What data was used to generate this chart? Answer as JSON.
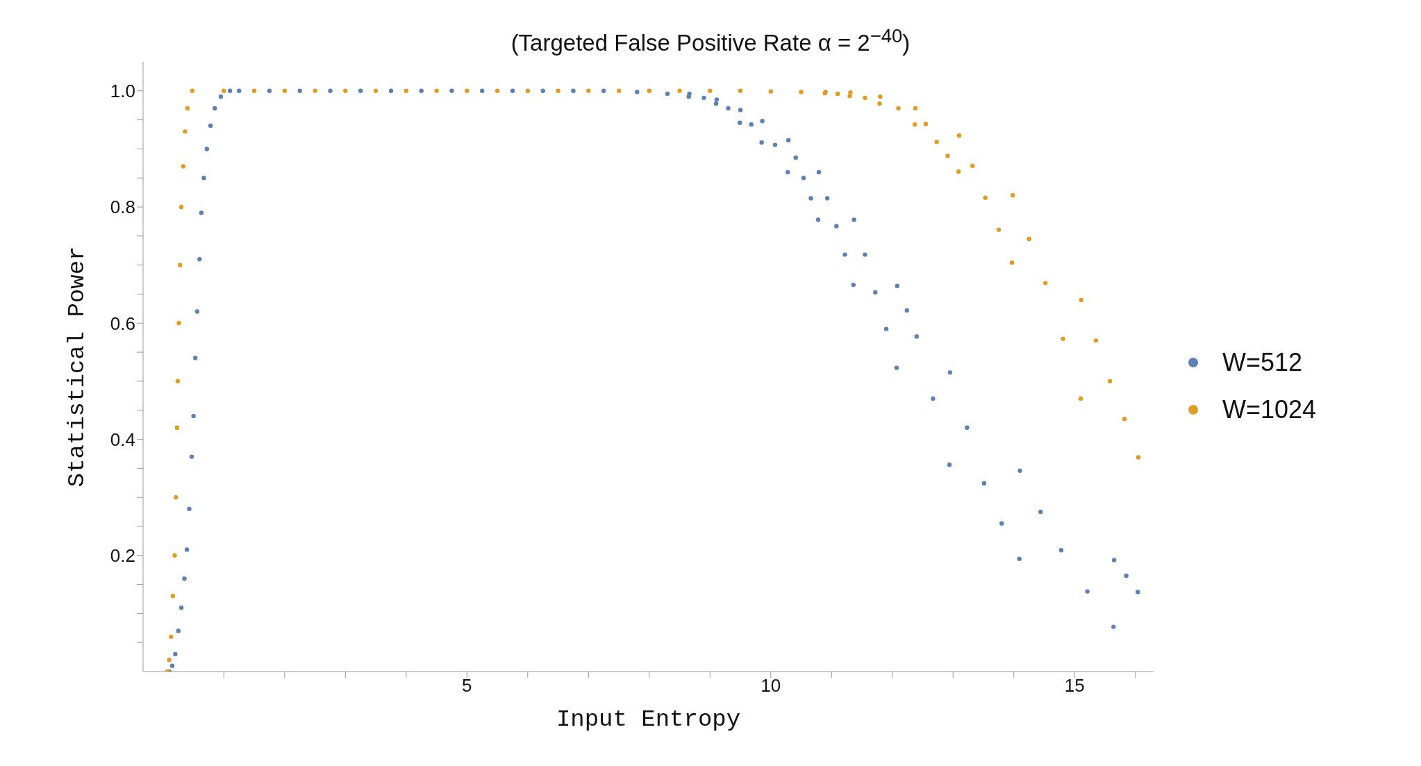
{
  "chart_data": {
    "type": "scatter",
    "title": "(Targeted False Positive Rate α = 2$^{−40}$)",
    "xlabel": "Input Entropy",
    "ylabel": "Statistical Power",
    "marker": "circle",
    "legend": "right",
    "xlim": [
      -0.33,
      16.3
    ],
    "ylim": [
      0,
      1.05
    ],
    "xticks": [
      {
        "value": 1,
        "label": null
      },
      {
        "value": 2,
        "label": null
      },
      {
        "value": 3,
        "label": null
      },
      {
        "value": 4,
        "label": null
      },
      5,
      {
        "value": 6,
        "label": null
      },
      {
        "value": 7,
        "label": null
      },
      {
        "value": 8,
        "label": null
      },
      {
        "value": 9,
        "label": null
      },
      10,
      {
        "value": 11,
        "label": null
      },
      {
        "value": 12,
        "label": null
      },
      {
        "value": 13,
        "label": null
      },
      {
        "value": 14,
        "label": null
      },
      15,
      {
        "value": 16,
        "label": null
      }
    ],
    "yticks": [
      {
        "value": 0.05,
        "label": null
      },
      {
        "value": 0.1,
        "label": null
      },
      {
        "value": 0.15,
        "label": null
      },
      {
        "value": 0.2,
        "label": "0.2"
      },
      {
        "value": 0.25,
        "label": null
      },
      {
        "value": 0.3,
        "label": null
      },
      {
        "value": 0.35,
        "label": null
      },
      {
        "value": 0.4,
        "label": "0.4"
      },
      {
        "value": 0.45,
        "label": null
      },
      {
        "value": 0.5,
        "label": null
      },
      {
        "value": 0.55,
        "label": null
      },
      {
        "value": 0.6,
        "label": "0.6"
      },
      {
        "value": 0.65,
        "label": null
      },
      {
        "value": 0.7,
        "label": null
      },
      {
        "value": 0.75,
        "label": null
      },
      {
        "value": 0.8,
        "label": "0.8"
      },
      {
        "value": 0.85,
        "label": null
      },
      {
        "value": 0.9,
        "label": null
      },
      {
        "value": 0.95,
        "label": null
      },
      {
        "value": 1,
        "label": "1.0"
      }
    ],
    "series": [
      {
        "name": "W=512",
        "color": "#5e81b5",
        "x": [
          0.1,
          0.15,
          0.2,
          0.25,
          0.3,
          0.35,
          0.39,
          0.43,
          0.47,
          0.5,
          0.53,
          0.56,
          0.6,
          0.63,
          0.67,
          0.72,
          0.78,
          0.85,
          0.95,
          1.1,
          1.25,
          1.75,
          2.25,
          2.75,
          3.25,
          3.75,
          4.25,
          4.75,
          5.25,
          5.75,
          6.25,
          6.75,
          7.25,
          7.8,
          8.3,
          8.65,
          8.66,
          8.9,
          9.1,
          9.11,
          9.3,
          9.49,
          9.5,
          9.68,
          9.85,
          9.86,
          10.07,
          10.28,
          10.29,
          10.41,
          10.54,
          10.66,
          10.78,
          10.79,
          10.93,
          11.08,
          11.22,
          11.36,
          11.37,
          11.55,
          11.72,
          11.9,
          12.07,
          12.08,
          12.24,
          12.4,
          12.67,
          12.94,
          12.95,
          13.23,
          13.51,
          13.8,
          14.09,
          14.1,
          14.44,
          14.78,
          15.21,
          15.64,
          15.65,
          15.85,
          16.04
        ],
        "values": [
          0,
          0.01,
          0.03,
          0.07,
          0.11,
          0.16,
          0.21,
          0.28,
          0.37,
          0.44,
          0.54,
          0.62,
          0.71,
          0.79,
          0.85,
          0.9,
          0.94,
          0.97,
          0.99,
          1,
          1,
          1,
          1,
          1,
          1,
          1,
          1,
          1,
          1,
          1,
          1,
          1,
          1,
          0.998,
          0.995,
          0.99,
          0.995,
          0.988,
          0.978,
          0.985,
          0.97,
          0.945,
          0.967,
          0.942,
          0.911,
          0.948,
          0.907,
          0.86,
          0.915,
          0.885,
          0.85,
          0.815,
          0.778,
          0.86,
          0.815,
          0.767,
          0.718,
          0.666,
          0.778,
          0.718,
          0.653,
          0.59,
          0.523,
          0.664,
          0.622,
          0.577,
          0.47,
          0.356,
          0.515,
          0.42,
          0.324,
          0.255,
          0.194,
          0.346,
          0.275,
          0.209,
          0.138,
          0.077,
          0.192,
          0.165,
          0.137
        ]
      },
      {
        "name": "W=1024",
        "color": "#e19c24",
        "x": [
          0.07,
          0.1,
          0.13,
          0.16,
          0.19,
          0.21,
          0.23,
          0.24,
          0.26,
          0.28,
          0.3,
          0.33,
          0.36,
          0.4,
          0.48,
          1,
          1.5,
          2,
          2.5,
          3,
          3.5,
          4,
          4.5,
          5,
          5.5,
          6,
          6.5,
          7,
          7.5,
          8,
          8.5,
          9,
          9.5,
          10,
          10.5,
          10.89,
          10.9,
          11.1,
          11.3,
          11.31,
          11.55,
          11.79,
          11.8,
          12.1,
          12.37,
          12.38,
          12.55,
          12.73,
          12.91,
          13.09,
          13.1,
          13.32,
          13.53,
          13.75,
          13.97,
          13.98,
          14.25,
          14.52,
          14.81,
          15.1,
          15.11,
          15.35,
          15.58,
          15.82,
          16.05
        ],
        "values": [
          0,
          0.02,
          0.06,
          0.13,
          0.2,
          0.3,
          0.42,
          0.5,
          0.6,
          0.7,
          0.8,
          0.87,
          0.93,
          0.97,
          1,
          1,
          1,
          1,
          1,
          1,
          1,
          1,
          1,
          1,
          1,
          1,
          1,
          1,
          1,
          1,
          1,
          1,
          1,
          0.999,
          0.998,
          0.996,
          0.998,
          0.995,
          0.991,
          0.997,
          0.988,
          0.978,
          0.99,
          0.97,
          0.942,
          0.97,
          0.943,
          0.912,
          0.888,
          0.861,
          0.923,
          0.871,
          0.816,
          0.761,
          0.704,
          0.82,
          0.745,
          0.669,
          0.573,
          0.47,
          0.64,
          0.57,
          0.5,
          0.435,
          0.369
        ]
      }
    ]
  }
}
